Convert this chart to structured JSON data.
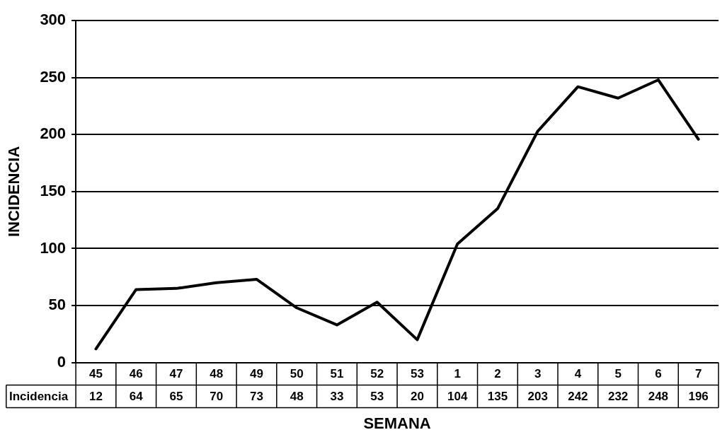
{
  "chart_data": {
    "type": "line",
    "xlabel": "SEMANA",
    "ylabel": "INCIDENCIA",
    "categories": [
      "45",
      "46",
      "47",
      "48",
      "49",
      "50",
      "51",
      "52",
      "53",
      "1",
      "2",
      "3",
      "4",
      "5",
      "6",
      "7"
    ],
    "series": [
      {
        "name": "Incidencia",
        "color": "#000000",
        "values": [
          12,
          64,
          65,
          70,
          73,
          48,
          33,
          53,
          20,
          104,
          135,
          203,
          242,
          232,
          248,
          196
        ]
      }
    ],
    "ylim": [
      0,
      300
    ],
    "yticks": [
      0,
      50,
      100,
      150,
      200,
      250,
      300
    ],
    "grid": "y",
    "data_labels": true,
    "marker": "none",
    "line_style": "solid"
  }
}
